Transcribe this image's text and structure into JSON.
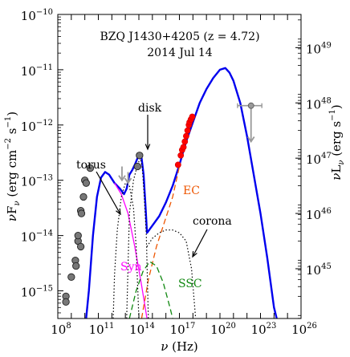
{
  "chart_data": {
    "type": "line",
    "title": "BZQ J1430+4205 (z = 4.72)",
    "subtitle": "2014 Jul 14",
    "xlabel": {
      "symbol": "ν",
      "unit": "(Hz)"
    },
    "ylabel_left": {
      "symbol": "νF",
      "sub": "ν",
      "unit": "(erg cm",
      "unit_exp": "−2",
      "unit_tail": " s",
      "unit_tail_exp": "−1",
      "close": ")"
    },
    "ylabel_right": {
      "symbol": "νL",
      "sub": "ν",
      "unit": "(erg s",
      "unit_exp": "−1",
      "close": ")"
    },
    "x_scale": "log",
    "y_scale": "log",
    "xlim_log": [
      8,
      26
    ],
    "ylim_log": [
      -15.5,
      -10
    ],
    "x_ticks": [
      {
        "log": 8,
        "base": "10",
        "exp": "8"
      },
      {
        "log": 11,
        "base": "10",
        "exp": "11"
      },
      {
        "log": 14,
        "base": "10",
        "exp": "14"
      },
      {
        "log": 17,
        "base": "10",
        "exp": "17"
      },
      {
        "log": 20,
        "base": "10",
        "exp": "20"
      },
      {
        "log": 23,
        "base": "10",
        "exp": "23"
      },
      {
        "log": 26,
        "base": "10",
        "exp": "26"
      }
    ],
    "y_ticks_left": [
      {
        "log": -15,
        "base": "10",
        "exp": "−15"
      },
      {
        "log": -14,
        "base": "10",
        "exp": "−14"
      },
      {
        "log": -13,
        "base": "10",
        "exp": "−13"
      },
      {
        "log": -12,
        "base": "10",
        "exp": "−12"
      },
      {
        "log": -11,
        "base": "10",
        "exp": "−11"
      },
      {
        "log": -10,
        "base": "10",
        "exp": "−10"
      }
    ],
    "y_ticks_right": [
      {
        "log_left": -14.6,
        "base": "10",
        "exp": "45"
      },
      {
        "log_left": -13.6,
        "base": "10",
        "exp": "46"
      },
      {
        "log_left": -12.6,
        "base": "10",
        "exp": "47"
      },
      {
        "log_left": -11.6,
        "base": "10",
        "exp": "48"
      },
      {
        "log_left": -10.6,
        "base": "10",
        "exp": "49"
      }
    ],
    "annotations": {
      "disk": "disk",
      "torus": "torus",
      "corona": "corona",
      "ec": "EC",
      "syn": "Syn",
      "ssc": "SSC"
    },
    "colors": {
      "total": "#0000ee",
      "syn": "#ff00ff",
      "ec": "#ee5500",
      "ssc": "#118811",
      "thermal": "#000000",
      "radio_points": "#777777",
      "xray_points": "#ff0000",
      "upper_limits": "#999999"
    },
    "series": [
      {
        "key": "total",
        "style": "solid",
        "points": [
          [
            10.1,
            -15.5
          ],
          [
            10.3,
            -15.0
          ],
          [
            10.6,
            -14.0
          ],
          [
            10.9,
            -13.3
          ],
          [
            11.2,
            -12.95
          ],
          [
            11.5,
            -12.85
          ],
          [
            11.8,
            -12.9
          ],
          [
            12.2,
            -13.05
          ],
          [
            12.6,
            -13.15
          ],
          [
            12.9,
            -13.25
          ],
          [
            13.1,
            -13.15
          ],
          [
            13.3,
            -12.9
          ],
          [
            13.5,
            -12.82
          ],
          [
            13.7,
            -12.72
          ],
          [
            13.9,
            -12.6
          ],
          [
            14.1,
            -12.55
          ],
          [
            14.2,
            -12.6
          ],
          [
            14.35,
            -12.9
          ],
          [
            14.5,
            -13.5
          ],
          [
            14.6,
            -13.95
          ],
          [
            14.7,
            -13.92
          ],
          [
            15.0,
            -13.82
          ],
          [
            15.5,
            -13.65
          ],
          [
            16.0,
            -13.4
          ],
          [
            16.5,
            -13.1
          ],
          [
            17.0,
            -12.72
          ],
          [
            17.5,
            -12.3
          ],
          [
            18.0,
            -11.95
          ],
          [
            18.5,
            -11.6
          ],
          [
            19.0,
            -11.35
          ],
          [
            19.5,
            -11.15
          ],
          [
            20.0,
            -11.0
          ],
          [
            20.4,
            -10.97
          ],
          [
            20.7,
            -11.05
          ],
          [
            21.0,
            -11.2
          ],
          [
            21.5,
            -11.6
          ],
          [
            22.0,
            -12.2
          ],
          [
            22.5,
            -12.9
          ],
          [
            23.0,
            -13.6
          ],
          [
            23.5,
            -14.4
          ],
          [
            24.0,
            -15.3
          ],
          [
            24.2,
            -15.5
          ]
        ]
      },
      {
        "key": "syn",
        "style": "solid",
        "points": [
          [
            12.2,
            -13.05
          ],
          [
            12.7,
            -13.25
          ],
          [
            13.2,
            -13.6
          ],
          [
            13.7,
            -14.2
          ],
          [
            14.2,
            -14.9
          ],
          [
            14.6,
            -15.5
          ]
        ]
      },
      {
        "key": "ec",
        "style": "dashed",
        "points": [
          [
            14.2,
            -15.5
          ],
          [
            14.7,
            -14.8
          ],
          [
            15.3,
            -14.2
          ],
          [
            15.9,
            -13.75
          ],
          [
            16.5,
            -13.3
          ],
          [
            17.0,
            -12.75
          ]
        ]
      },
      {
        "key": "ssc",
        "style": "dashed",
        "points": [
          [
            13.3,
            -15.5
          ],
          [
            13.8,
            -15.0
          ],
          [
            14.3,
            -14.65
          ],
          [
            14.8,
            -14.47
          ],
          [
            15.3,
            -14.55
          ],
          [
            15.8,
            -14.85
          ],
          [
            16.3,
            -15.3
          ],
          [
            16.5,
            -15.5
          ]
        ]
      },
      {
        "key": "torus",
        "style": "dotted",
        "points": [
          [
            12.1,
            -15.5
          ],
          [
            12.2,
            -14.7
          ],
          [
            12.4,
            -13.9
          ],
          [
            12.7,
            -13.3
          ],
          [
            13.0,
            -13.05
          ],
          [
            13.3,
            -13.1
          ],
          [
            13.6,
            -13.5
          ],
          [
            13.8,
            -14.2
          ],
          [
            14.0,
            -15.5
          ]
        ]
      },
      {
        "key": "disk",
        "style": "dotted",
        "points": [
          [
            13.1,
            -15.5
          ],
          [
            13.3,
            -13.6
          ],
          [
            13.6,
            -13.0
          ],
          [
            13.9,
            -12.72
          ],
          [
            14.1,
            -12.6
          ],
          [
            14.25,
            -12.75
          ],
          [
            14.4,
            -13.3
          ],
          [
            14.55,
            -14.0
          ],
          [
            14.7,
            -15.5
          ]
        ]
      },
      {
        "key": "corona",
        "style": "dotted",
        "points": [
          [
            14.6,
            -14.2
          ],
          [
            15.0,
            -14.05
          ],
          [
            15.5,
            -13.95
          ],
          [
            16.0,
            -13.9
          ],
          [
            16.5,
            -13.9
          ],
          [
            17.0,
            -13.95
          ],
          [
            17.5,
            -14.1
          ],
          [
            17.9,
            -14.6
          ],
          [
            18.2,
            -15.5
          ]
        ]
      }
    ],
    "radio_points": [
      [
        8.6,
        -15.1
      ],
      [
        8.6,
        -15.2
      ],
      [
        9.0,
        -14.75
      ],
      [
        9.3,
        -14.45
      ],
      [
        9.35,
        -14.55
      ],
      [
        9.5,
        -14.1
      ],
      [
        9.5,
        -14.0
      ],
      [
        9.7,
        -14.2
      ],
      [
        9.7,
        -13.55
      ],
      [
        9.75,
        -13.6
      ],
      [
        9.9,
        -13.3
      ],
      [
        10.0,
        -13.0
      ],
      [
        10.1,
        -13.05
      ],
      [
        10.4,
        -12.78
      ],
      [
        13.9,
        -12.75
      ],
      [
        14.05,
        -12.55
      ]
    ],
    "xray_points": [
      [
        16.9,
        -12.72
      ],
      [
        17.1,
        -12.55
      ],
      [
        17.2,
        -12.45
      ],
      [
        17.3,
        -12.4
      ],
      [
        17.4,
        -12.3
      ],
      [
        17.5,
        -12.2
      ],
      [
        17.6,
        -12.1
      ],
      [
        17.7,
        -12.0
      ],
      [
        17.75,
        -11.95
      ],
      [
        17.85,
        -11.9
      ],
      [
        17.95,
        -11.85
      ]
    ],
    "upper_limits": [
      {
        "x": 12.75,
        "y": -12.75,
        "y_to": -13.0
      },
      {
        "x": 13.2,
        "y": -12.85,
        "y_to": -13.05
      },
      {
        "x": 22.3,
        "y": -11.65,
        "y_to": -12.3,
        "x_from": 21.3,
        "x_to": 23.1
      }
    ]
  }
}
